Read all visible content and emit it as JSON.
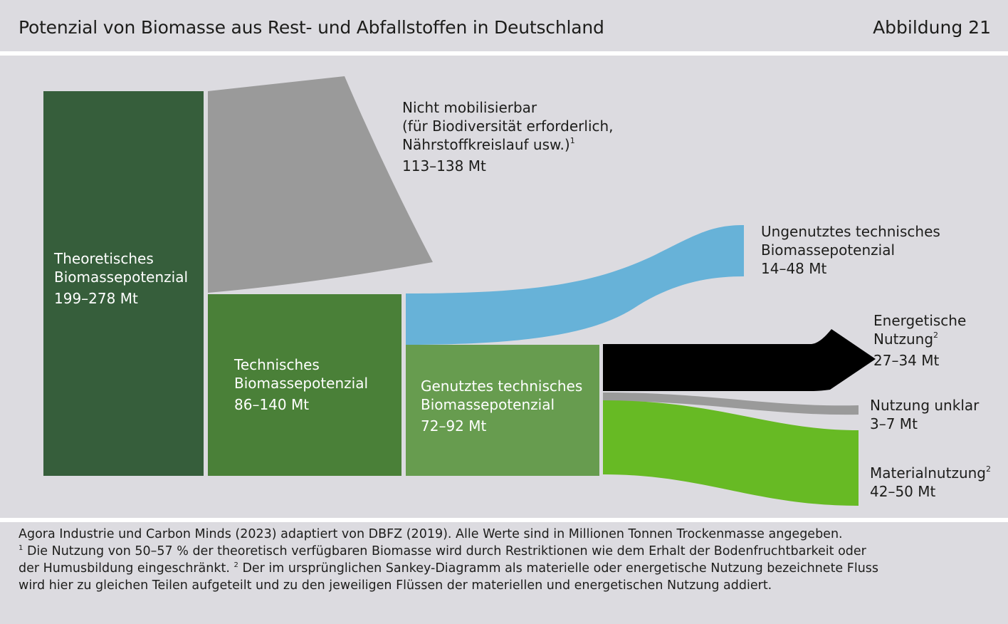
{
  "header": {
    "title": "Potenzial von Biomasse aus Rest- und Abfallstoffen in Deutschland",
    "figure_number": "Abbildung 21"
  },
  "colors": {
    "theoretical": "#365e3b",
    "technical": "#4a8038",
    "not_mobilizable": "#9a9a9a",
    "used_technical": "#679c4f",
    "unused_technical": "#67b2d8",
    "energetic": "#000000",
    "unclear": "#9a9a9a",
    "material": "#67ba24",
    "background": "#dcdbe0"
  },
  "diagram": {
    "nodes": {
      "theoretical": {
        "line1": "Theoretisches",
        "line2": "Biomassepotenzial",
        "value": "199–278 Mt"
      },
      "technical": {
        "line1": "Technisches",
        "line2": "Biomassepotenzial",
        "value": "86–140 Mt"
      },
      "not_mobilizable": {
        "line1": "Nicht mobilisierbar",
        "line2": "(für Biodiversität erforderlich,",
        "line3": "Nährstoffkreislauf usw.)",
        "footnote": "1",
        "value": "113–138 Mt"
      },
      "used_technical": {
        "line1": "Genutztes technisches",
        "line2": "Biomassepotenzial",
        "value": "72–92 Mt"
      },
      "unused_technical": {
        "line1": "Ungenutztes technisches",
        "line2": "Biomassepotenzial",
        "value": "14–48 Mt"
      },
      "energetic": {
        "line1": "Energetische",
        "line2": "Nutzung",
        "footnote": "2",
        "value": "27–34 Mt"
      },
      "unclear": {
        "line1": "Nutzung unklar",
        "value": "3–7 Mt"
      },
      "material": {
        "line1": "Materialnutzung",
        "footnote": "2",
        "value": "42–50 Mt"
      }
    }
  },
  "footer": {
    "source": "Agora Industrie und Carbon Minds (2023) adaptiert von DBFZ (2019). Alle Werte sind in Millionen Tonnen Trockenmasse angegeben.",
    "note1_marker": "1",
    "note1_line1": " Die Nutzung von 50–57 % der theoretisch verfügbaren Biomasse wird durch Restriktionen wie dem Erhalt der Bodenfruchtbarkeit oder",
    "note1_line2": "der Humusbildung eingeschränkt. ",
    "note2_marker": "2",
    "note2_line2": " Der im ursprünglichen Sankey-Diagramm als materielle oder energetische Nutzung bezeichnete Fluss",
    "note2_line3": "wird hier zu gleichen Teilen aufgeteilt und zu den jeweiligen Flüssen der materiellen und energetischen Nutzung addiert."
  }
}
